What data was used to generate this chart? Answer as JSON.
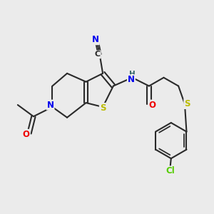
{
  "bg_color": "#ebebeb",
  "bond_color": "#2a2a2a",
  "bond_width": 1.5,
  "atom_colors": {
    "N": "#0000ee",
    "S": "#bbbb00",
    "O": "#ee0000",
    "Cl": "#55cc00",
    "C": "#2a2a2a",
    "H": "#336666"
  },
  "font_size": 8.5,
  "fig_size": [
    3.0,
    3.0
  ],
  "dpi": 100
}
